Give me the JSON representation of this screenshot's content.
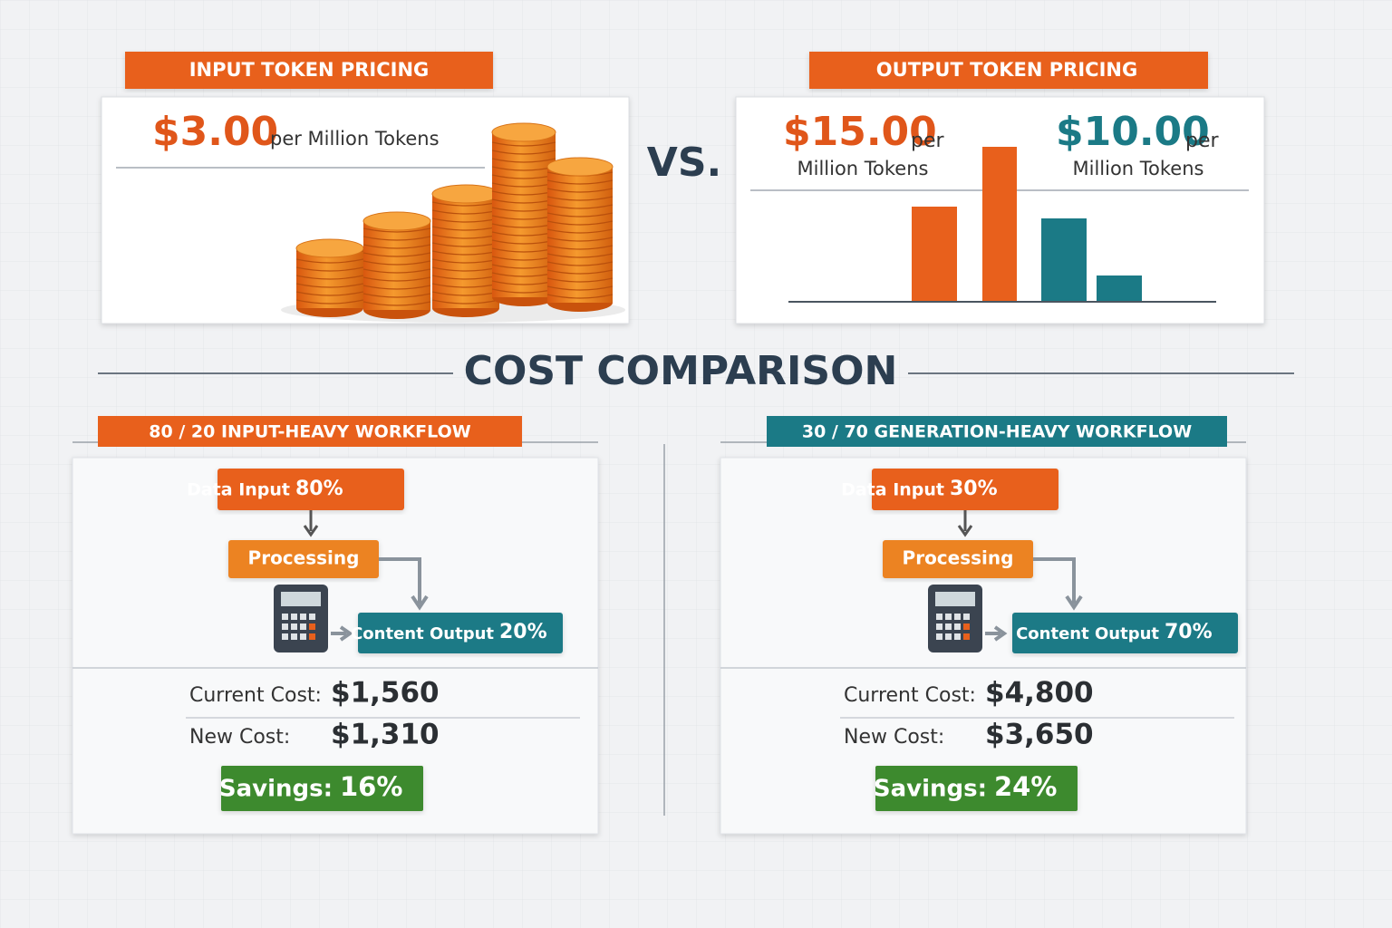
{
  "input_pricing": {
    "header": "INPUT TOKEN PRICING",
    "price": "$3.00",
    "unit": "per Million Tokens"
  },
  "vs": "VS.",
  "output_pricing": {
    "header": "OUTPUT TOKEN PRICING",
    "prices": [
      {
        "price": "$15.00",
        "per": "per",
        "unit": "Million Tokens"
      },
      {
        "price": "$10.00",
        "per": "per",
        "unit": "Million Tokens"
      }
    ]
  },
  "section_title": "COST COMPARISON",
  "workflows": [
    {
      "header": "80 / 20 INPUT-HEAVY WORKFLOW",
      "input_label": "Data Input",
      "input_share": "80%",
      "processing": "Processing",
      "output_label": "Content Output",
      "output_share": "20%",
      "current_cost_label": "Current Cost:",
      "current_cost": "$1,560",
      "new_cost_label": "New Cost:",
      "new_cost": "$1,310",
      "savings_label": "Savings:",
      "savings": "16%"
    },
    {
      "header": "30 / 70 GENERATION-HEAVY WORKFLOW",
      "input_label": "Data Input",
      "input_share": "30%",
      "processing": "Processing",
      "output_label": "Content Output",
      "output_share": "70%",
      "current_cost_label": "Current Cost:",
      "current_cost": "$4,800",
      "new_cost_label": "New Cost:",
      "new_cost": "$3,650",
      "savings_label": "Savings:",
      "savings": "24%"
    }
  ]
}
